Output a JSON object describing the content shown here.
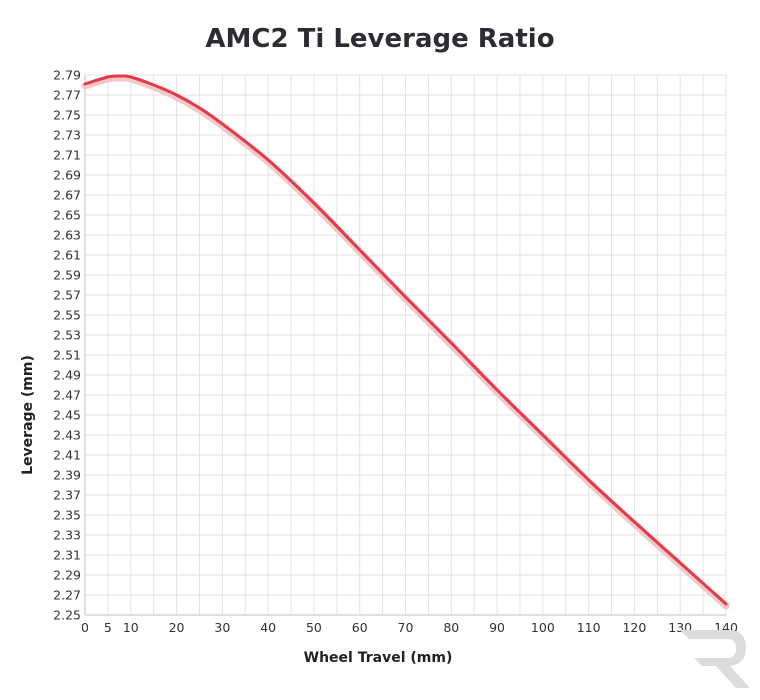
{
  "chart_data": {
    "type": "line",
    "title": "AMC2 Ti Leverage Ratio",
    "xlabel": "Wheel Travel (mm)",
    "ylabel": "Leverage (mm)",
    "xlim": [
      0,
      140
    ],
    "ylim": [
      2.25,
      2.79
    ],
    "x_ticks": [
      0,
      5,
      10,
      20,
      30,
      40,
      50,
      60,
      70,
      80,
      90,
      100,
      110,
      120,
      130,
      140
    ],
    "x_grid": [
      0,
      5,
      10,
      15,
      20,
      25,
      30,
      35,
      40,
      45,
      50,
      55,
      60,
      65,
      70,
      75,
      80,
      85,
      90,
      95,
      100,
      105,
      110,
      115,
      120,
      125,
      130,
      135,
      140
    ],
    "y_ticks": [
      "2.79",
      "2.77",
      "2.75",
      "2.73",
      "2.71",
      "2.69",
      "2.67",
      "2.65",
      "2.63",
      "2.61",
      "2.59",
      "2.57",
      "2.55",
      "2.53",
      "2.51",
      "2.49",
      "2.47",
      "2.45",
      "2.43",
      "2.41",
      "2.39",
      "2.37",
      "2.35",
      "2.33",
      "2.31",
      "2.29",
      "2.27",
      "2.25"
    ],
    "grid": true,
    "legend": "none",
    "series": [
      {
        "name": "AMC2 Ti",
        "color": "#e03c4a",
        "x": [
          0,
          5,
          8,
          10,
          15,
          20,
          25,
          30,
          40,
          50,
          60,
          70,
          80,
          90,
          100,
          110,
          120,
          130,
          140
        ],
        "y": [
          2.781,
          2.788,
          2.789,
          2.788,
          2.78,
          2.77,
          2.757,
          2.741,
          2.705,
          2.662,
          2.615,
          2.568,
          2.522,
          2.475,
          2.43,
          2.385,
          2.343,
          2.302,
          2.261
        ]
      }
    ]
  },
  "watermark": {
    "icon": "brand-r-logo-icon",
    "color": "#dcdcdc"
  }
}
